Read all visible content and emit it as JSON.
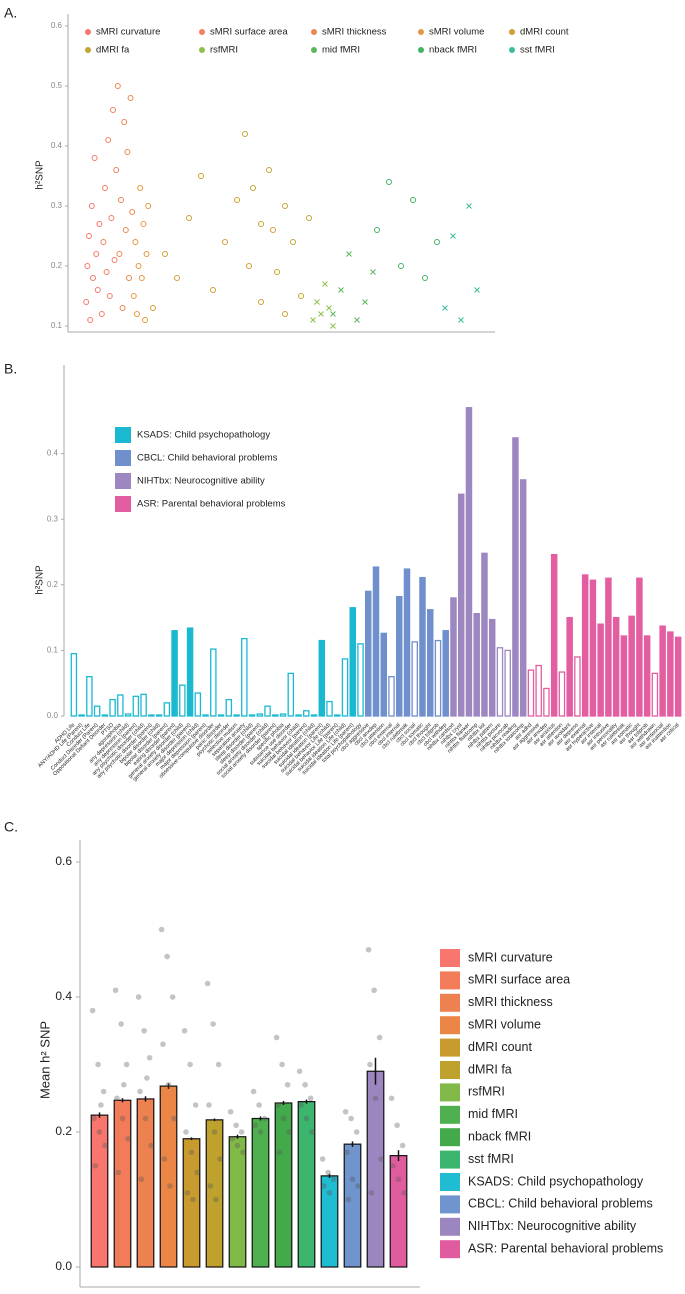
{
  "chart_data": [
    {
      "type": "scatter",
      "panel": "A.",
      "y_label": "h²SNP",
      "xlim": [
        0,
        100
      ],
      "ylim": [
        0.09,
        0.62
      ],
      "yticks": [
        0.1,
        0.2,
        0.3,
        0.4,
        0.5,
        0.6
      ],
      "series": [
        {
          "name": "sMRI curvature",
          "color": "#f8766d",
          "marker": "circle",
          "x": [
            0.3,
            0.6,
            1,
            1.3,
            1.7,
            2,
            2.4,
            2.8,
            3.2,
            3.6
          ],
          "values": [
            0.14,
            0.2,
            0.25,
            0.11,
            0.3,
            0.18,
            0.38,
            0.22,
            0.16,
            0.27
          ]
        },
        {
          "name": "sMRI surface area",
          "color": "#f27f60",
          "marker": "circle",
          "x": [
            4.2,
            4.6,
            5,
            5.4,
            5.8,
            6.2,
            6.6,
            7,
            7.4,
            7.8
          ],
          "values": [
            0.12,
            0.24,
            0.33,
            0.19,
            0.41,
            0.15,
            0.28,
            0.46,
            0.21,
            0.36
          ]
        },
        {
          "name": "sMRI thickness",
          "color": "#ec8650",
          "marker": "circle",
          "x": [
            8.2,
            8.6,
            9,
            9.4,
            9.8,
            10.2,
            10.6,
            11,
            11.4,
            11.8
          ],
          "values": [
            0.5,
            0.22,
            0.31,
            0.13,
            0.44,
            0.26,
            0.39,
            0.18,
            0.48,
            0.29
          ]
        },
        {
          "name": "sMRI volume",
          "color": "#e3993f",
          "marker": "circle",
          "x": [
            12.2,
            12.6,
            13,
            13.4,
            13.8,
            14.2,
            14.6,
            15,
            15.4,
            15.8
          ],
          "values": [
            0.15,
            0.24,
            0.12,
            0.2,
            0.33,
            0.18,
            0.27,
            0.11,
            0.22,
            0.3
          ]
        },
        {
          "name": "dMRI count",
          "color": "#cf9f2f",
          "marker": "circle",
          "x": [
            17,
            20,
            23,
            26,
            29,
            32,
            35,
            38,
            41,
            44,
            47,
            50
          ],
          "values": [
            0.13,
            0.22,
            0.18,
            0.28,
            0.35,
            0.16,
            0.24,
            0.31,
            0.2,
            0.14,
            0.26,
            0.12
          ]
        },
        {
          "name": "dMRI fa",
          "color": "#c2a530",
          "marker": "circle",
          "x": [
            40,
            42,
            44,
            46,
            48,
            50,
            52,
            54,
            56
          ],
          "values": [
            0.42,
            0.33,
            0.27,
            0.36,
            0.19,
            0.3,
            0.24,
            0.15,
            0.28
          ]
        },
        {
          "name": "rsfMRI",
          "color": "#8dbf4a",
          "marker": "x",
          "x": [
            57,
            58,
            59,
            60,
            61,
            62
          ],
          "values": [
            0.11,
            0.14,
            0.12,
            0.17,
            0.13,
            0.1
          ]
        },
        {
          "name": "mid fMRI",
          "color": "#5bb85a",
          "marker": "x",
          "x": [
            62,
            64,
            66,
            68,
            70,
            72
          ],
          "values": [
            0.12,
            0.16,
            0.22,
            0.11,
            0.14,
            0.19
          ]
        },
        {
          "name": "nback fMRI",
          "color": "#3fb55f",
          "marker": "circle",
          "x": [
            73,
            76,
            79,
            82,
            85,
            88
          ],
          "values": [
            0.26,
            0.34,
            0.2,
            0.31,
            0.18,
            0.24
          ]
        },
        {
          "name": "sst fMRI",
          "color": "#3cbb9c",
          "marker": "x",
          "x": [
            90,
            92,
            94,
            96,
            98
          ],
          "values": [
            0.13,
            0.25,
            0.11,
            0.3,
            0.16
          ]
        }
      ]
    },
    {
      "type": "bar",
      "panel": "B.",
      "y_label": "h²SNP",
      "ylim": [
        0,
        0.5
      ],
      "yticks": [
        {
          "value": 0,
          "label": "0.0"
        },
        0.1,
        0.2,
        0.3,
        0.4
      ],
      "series": [
        {
          "name": "KSADS: Child psychopathology",
          "color": "#1ab9d1",
          "categories": [
            "ADHD Life",
            "ANY/ADHD Life (Parent)",
            "Conduct Life",
            "Conduct Disorder (Parent)",
            "Oppositional Defiant Disorder",
            "PTSD",
            "agoraphobia",
            "any depression (child)",
            "any depression (parent)",
            "any psychotic disorder (child)",
            "any psychotic disorder (parent)",
            "bipolar disorder (child)",
            "bipolar disorder (parent)",
            "eating disorder (parent)",
            "general anxiety disorder (child)",
            "general anxiety disorder (parent)",
            "major depression (child)",
            "major depression (parent)",
            "obsessive-compulsive disorder",
            "panic disorder",
            "psychotic disorder",
            "selective mutism",
            "separation anxiety",
            "sleep disorder (child)",
            "sleep disorder (parent)",
            "social anxiety disorder (child)",
            "social anxiety disorder (parent)",
            "specific phobia",
            "substance use disorder",
            "suicidal behavior (child)",
            "suicidal behavior (parent)",
            "suicidal ideation (child)",
            "suicidal ideation (parent)",
            "suicidal behavior Life (child)",
            "suicidal behavior Life (parent)",
            "suicidal ideation Life (child)",
            "suicidal ideation Life (parent)",
            "total psychopathology"
          ],
          "values": [
            0.095,
            0,
            0.06,
            0.015,
            0,
            0.025,
            0.032,
            0.003,
            0.03,
            0.033,
            0,
            0,
            0.02,
            0.13,
            0.047,
            0.134,
            0.035,
            0,
            0.102,
            0,
            0.025,
            0,
            0.118,
            0,
            0.003,
            0.015,
            0,
            0.003,
            0.065,
            0,
            0.008,
            0,
            0.115,
            0.022,
            0,
            0.087,
            0.165,
            0.11
          ],
          "filled": [
            false,
            false,
            false,
            false,
            false,
            false,
            false,
            false,
            false,
            false,
            false,
            false,
            false,
            true,
            false,
            true,
            false,
            false,
            false,
            false,
            false,
            false,
            false,
            false,
            false,
            false,
            false,
            false,
            false,
            false,
            false,
            false,
            true,
            false,
            false,
            false,
            true,
            false
          ]
        },
        {
          "name": "CBCL: Child behavioral problems",
          "color": "#6f90cc",
          "categories": [
            "cbcl aggressive",
            "cbcl anxdep",
            "cbcl attention",
            "cbcl external",
            "cbcl internal",
            "cbcl rulebreak",
            "cbcl social",
            "cbcl somatic",
            "cbcl thought",
            "cbcl totprob",
            "cbcl withdep"
          ],
          "values": [
            0.19,
            0.227,
            0.126,
            0.06,
            0.182,
            0.224,
            0.113,
            0.211,
            0.162,
            0.115,
            0.13
          ],
          "filled": [
            true,
            true,
            true,
            false,
            true,
            true,
            false,
            true,
            true,
            false,
            true
          ]
        },
        {
          "name": "NIHTbx: Neurocognitive ability",
          "color": "#9d87c1",
          "categories": [
            "nihtbx cardsort",
            "nihtbx cryst",
            "nihtbx flanker",
            "nihtbx fluidcomp",
            "nihtbx list",
            "nihtbx pattern",
            "nihtbx picture",
            "nihtbx picvocab",
            "nihtbx reading",
            "nihtbx totalcomp"
          ],
          "values": [
            0.18,
            0.338,
            0.47,
            0.156,
            0.248,
            0.147,
            0.104,
            0.1,
            0.424,
            0.36
          ],
          "filled": [
            true,
            true,
            true,
            true,
            true,
            true,
            false,
            false,
            true,
            true
          ]
        },
        {
          "name": "ASR: Parental behavioral problems",
          "color": "#e35ea1",
          "categories": [
            "asr adhd",
            "asr aggressive",
            "asr anxdep",
            "asr anxious",
            "asr attention",
            "asr avoidant",
            "asr depress",
            "asr external",
            "asr hyperactive",
            "asr internal",
            "asr intrusive",
            "asr personality",
            "asr rulebreak",
            "asr somatic",
            "asr thought",
            "asr totprob",
            "asr withdrawn",
            "asr antisocial",
            "asr inattention",
            "asr critical"
          ],
          "values": [
            0.07,
            0.077,
            0.042,
            0.246,
            0.067,
            0.15,
            0.09,
            0.215,
            0.207,
            0.14,
            0.21,
            0.15,
            0.122,
            0.152,
            0.21,
            0.122,
            0.065,
            0.137,
            0.128,
            0.12
          ],
          "filled": [
            false,
            false,
            false,
            true,
            false,
            true,
            false,
            true,
            true,
            true,
            true,
            true,
            true,
            true,
            true,
            true,
            false,
            true,
            true,
            true
          ]
        }
      ]
    },
    {
      "type": "bar",
      "panel": "C.",
      "y_label": "Mean h² SNP",
      "ylim": [
        0,
        0.6
      ],
      "yticks": [
        {
          "value": 0,
          "label": "0.0"
        },
        0.2,
        0.4,
        0.6
      ],
      "categories": [
        "sMRI curvature",
        "sMRI surface area",
        "sMRI thickness",
        "sMRI volume",
        "dMRI count",
        "dMRI fa",
        "rsfMRI",
        "mid fMRI",
        "nback fMRI",
        "sst fMRI",
        "KSADS: Child psychopathology",
        "CBCL: Child behavioral problems",
        "NIHTbx: Neurocognitive ability",
        "ASR: Parental behavioral problems"
      ],
      "colors": [
        "#f8766d",
        "#f27c5a",
        "#ee8150",
        "#ec8646",
        "#c99b2e",
        "#bea22d",
        "#80b947",
        "#4fb04f",
        "#43aa4b",
        "#3cb56e",
        "#1fbcd2",
        "#7094cd",
        "#9b86c0",
        "#e05c9e"
      ],
      "values": [
        0.225,
        0.247,
        0.249,
        0.268,
        0.19,
        0.218,
        0.193,
        0.22,
        0.243,
        0.245,
        0.135,
        0.182,
        0.29,
        0.165
      ],
      "errors": [
        0.004,
        0.003,
        0.004,
        0.004,
        0.002,
        0.002,
        0.003,
        0.003,
        0.003,
        0.003,
        0.003,
        0.004,
        0.02,
        0.008
      ],
      "points": [
        [
          0.38,
          0.3,
          0.26,
          0.22,
          0.2,
          0.18,
          0.15,
          0.24
        ],
        [
          0.41,
          0.36,
          0.3,
          0.25,
          0.22,
          0.19,
          0.14,
          0.27
        ],
        [
          0.4,
          0.35,
          0.31,
          0.26,
          0.22,
          0.18,
          0.13,
          0.28
        ],
        [
          0.5,
          0.46,
          0.4,
          0.33,
          0.27,
          0.22,
          0.16,
          0.12
        ],
        [
          0.35,
          0.3,
          0.24,
          0.2,
          0.17,
          0.14,
          0.11,
          0.1
        ],
        [
          0.42,
          0.36,
          0.3,
          0.24,
          0.2,
          0.16,
          0.12,
          0.1
        ],
        [
          0.23,
          0.21,
          0.2,
          0.19,
          0.18,
          0.17
        ],
        [
          0.26,
          0.24,
          0.22,
          0.21,
          0.2
        ],
        [
          0.34,
          0.3,
          0.27,
          0.24,
          0.22,
          0.2,
          0.17
        ],
        [
          0.29,
          0.27,
          0.25,
          0.24,
          0.22,
          0.2
        ],
        [
          0.16,
          0.14,
          0.13,
          0.12,
          0.11
        ],
        [
          0.23,
          0.22,
          0.2,
          0.17,
          0.13,
          0.12,
          0.1
        ],
        [
          0.47,
          0.41,
          0.34,
          0.3,
          0.25,
          0.16,
          0.11
        ],
        [
          0.25,
          0.21,
          0.18,
          0.15,
          0.13,
          0.11
        ]
      ]
    }
  ]
}
